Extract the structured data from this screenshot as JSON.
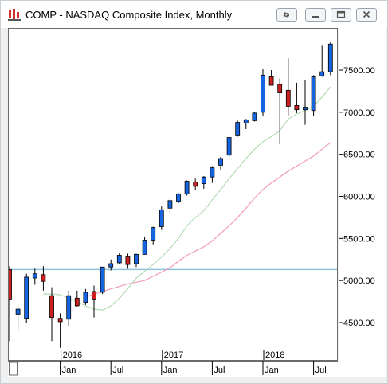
{
  "window": {
    "title": "COMP - NASDAQ Composite Index, Monthly",
    "icons": [
      "chart-app-icon",
      "link-icon",
      "minimize-icon",
      "maximize-icon",
      "close-icon"
    ]
  },
  "chart_data": {
    "type": "candlestick",
    "y_ticks": [
      "7500.00",
      "7000.00",
      "6500.00",
      "6000.00",
      "5500.00",
      "5000.00",
      "4500.00"
    ],
    "y_tick_values": [
      7500,
      7000,
      6500,
      6000,
      5500,
      5000,
      4500
    ],
    "ylim": [
      4270,
      7900
    ],
    "x_month_labels": [
      "Jan",
      "Jul",
      "Jan",
      "Jul",
      "Jan",
      "Jul"
    ],
    "x_year_labels": [
      "2016",
      "2017",
      "2018"
    ],
    "horizontal_line": 5130,
    "candles": [
      {
        "o": 5130,
        "h": 5170,
        "l": 4280,
        "c": 4780
      },
      {
        "o": 4600,
        "h": 4700,
        "l": 4410,
        "c": 4660
      },
      {
        "o": 4550,
        "h": 5080,
        "l": 4500,
        "c": 5040
      },
      {
        "o": 5030,
        "h": 5140,
        "l": 4950,
        "c": 5080
      },
      {
        "o": 5070,
        "h": 5170,
        "l": 4880,
        "c": 4990
      },
      {
        "o": 4820,
        "h": 4920,
        "l": 4280,
        "c": 4560
      },
      {
        "o": 4550,
        "h": 4610,
        "l": 4200,
        "c": 4510
      },
      {
        "o": 4540,
        "h": 4880,
        "l": 4460,
        "c": 4820
      },
      {
        "o": 4790,
        "h": 4880,
        "l": 4690,
        "c": 4700
      },
      {
        "o": 4740,
        "h": 4900,
        "l": 4710,
        "c": 4860
      },
      {
        "o": 4870,
        "h": 4940,
        "l": 4560,
        "c": 4780
      },
      {
        "o": 4860,
        "h": 5160,
        "l": 4840,
        "c": 5160
      },
      {
        "o": 5160,
        "h": 5250,
        "l": 5120,
        "c": 5200
      },
      {
        "o": 5210,
        "h": 5330,
        "l": 5200,
        "c": 5300
      },
      {
        "o": 5290,
        "h": 5320,
        "l": 5140,
        "c": 5190
      },
      {
        "o": 5200,
        "h": 5320,
        "l": 5160,
        "c": 5310
      },
      {
        "o": 5310,
        "h": 5520,
        "l": 5310,
        "c": 5480
      },
      {
        "o": 5480,
        "h": 5640,
        "l": 5430,
        "c": 5630
      },
      {
        "o": 5640,
        "h": 5880,
        "l": 5600,
        "c": 5840
      },
      {
        "o": 5860,
        "h": 5990,
        "l": 5800,
        "c": 5950
      },
      {
        "o": 5940,
        "h": 6040,
        "l": 5920,
        "c": 6030
      },
      {
        "o": 6030,
        "h": 6190,
        "l": 6010,
        "c": 6180
      },
      {
        "o": 6170,
        "h": 6210,
        "l": 6080,
        "c": 6120
      },
      {
        "o": 6150,
        "h": 6240,
        "l": 6090,
        "c": 6230
      },
      {
        "o": 6230,
        "h": 6360,
        "l": 6160,
        "c": 6340
      },
      {
        "o": 6370,
        "h": 6470,
        "l": 6310,
        "c": 6450
      },
      {
        "o": 6490,
        "h": 6710,
        "l": 6470,
        "c": 6700
      },
      {
        "o": 6720,
        "h": 6900,
        "l": 6710,
        "c": 6880
      },
      {
        "o": 6870,
        "h": 6920,
        "l": 6800,
        "c": 6910
      },
      {
        "o": 6900,
        "h": 7000,
        "l": 6890,
        "c": 6990
      },
      {
        "o": 7000,
        "h": 7510,
        "l": 6960,
        "c": 7440
      },
      {
        "o": 7420,
        "h": 7500,
        "l": 7320,
        "c": 7320
      },
      {
        "o": 7330,
        "h": 7400,
        "l": 6620,
        "c": 7230
      },
      {
        "o": 7260,
        "h": 7640,
        "l": 6960,
        "c": 7070
      },
      {
        "o": 7080,
        "h": 7350,
        "l": 6990,
        "c": 7030
      },
      {
        "o": 7030,
        "h": 7380,
        "l": 6850,
        "c": 7060
      },
      {
        "o": 7020,
        "h": 7440,
        "l": 6960,
        "c": 7420
      },
      {
        "o": 7430,
        "h": 7790,
        "l": 7420,
        "c": 7480
      },
      {
        "o": 7480,
        "h": 7830,
        "l": 7440,
        "c": 7810
      }
    ],
    "ma_short": [
      null,
      null,
      null,
      null,
      4840,
      4840,
      4830,
      4790,
      4750,
      4700,
      4660,
      4650,
      4700,
      4790,
      4900,
      5030,
      5110,
      5190,
      5280,
      5380,
      5500,
      5650,
      5750,
      5830,
      5960,
      6080,
      6210,
      6330,
      6450,
      6560,
      6650,
      6710,
      6780,
      6920,
      6980,
      7020,
      7070,
      7180,
      7300
    ],
    "ma_long": [
      null,
      null,
      null,
      null,
      null,
      null,
      null,
      null,
      null,
      4800,
      4840,
      4870,
      4900,
      4930,
      4960,
      4980,
      5000,
      5050,
      5100,
      5150,
      5230,
      5300,
      5350,
      5400,
      5470,
      5560,
      5650,
      5750,
      5860,
      5980,
      6080,
      6160,
      6230,
      6300,
      6360,
      6420,
      6480,
      6560,
      6640
    ]
  }
}
